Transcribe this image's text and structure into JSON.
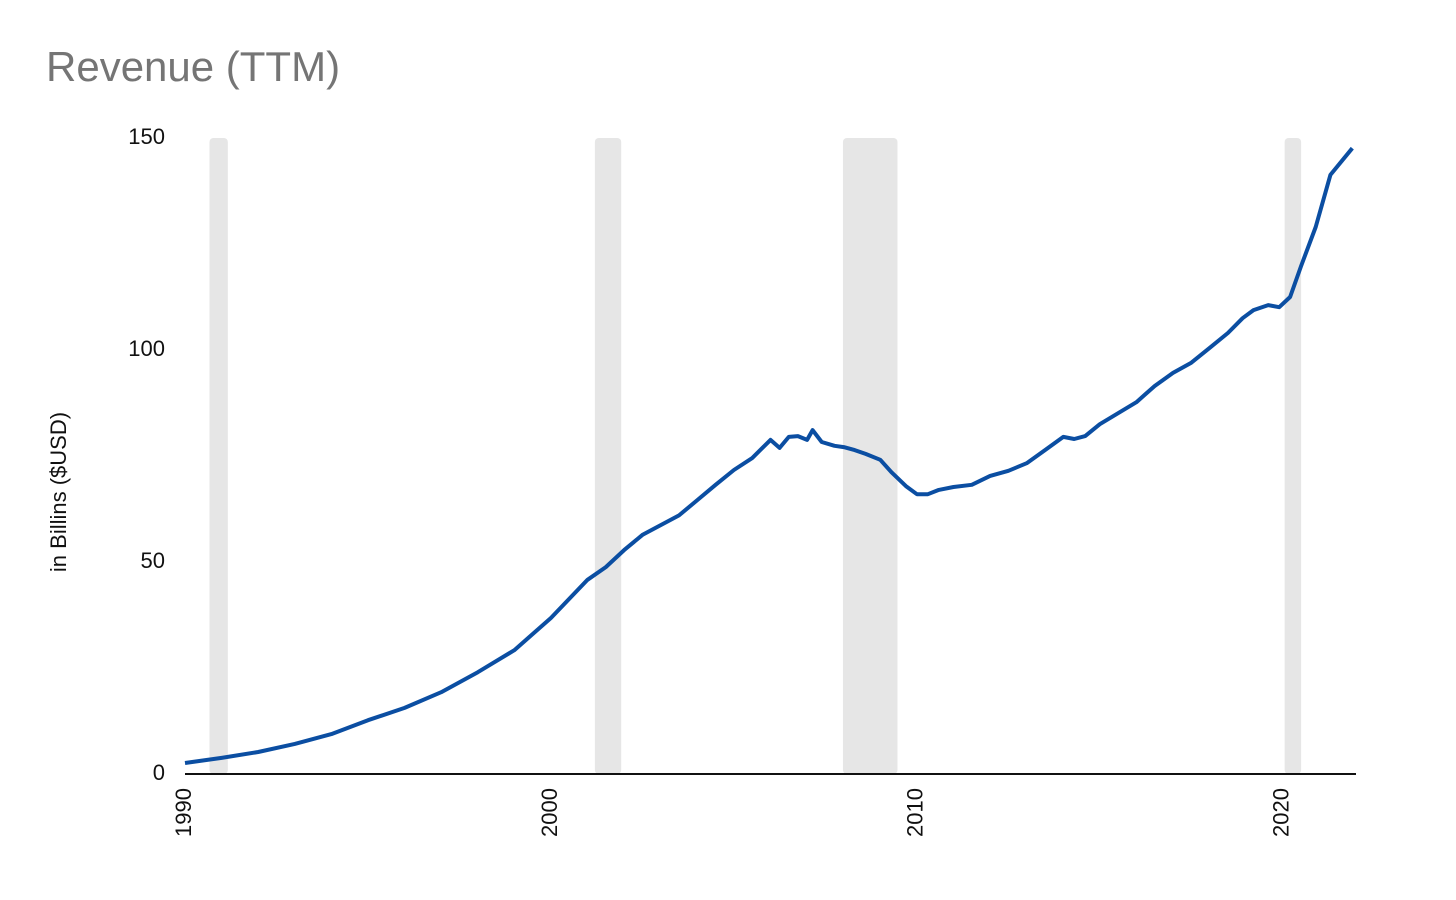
{
  "chart_data": {
    "type": "line",
    "title": "Revenue (TTM)",
    "y_label": "in Billins ($USD)",
    "x": [
      1990,
      1991,
      1992,
      1993,
      1994,
      1995,
      1996,
      1997,
      1998,
      1999,
      2000,
      2001,
      2001.5,
      2002,
      2002.5,
      2003,
      2003.5,
      2004,
      2004.5,
      2005,
      2005.5,
      2006,
      2006.25,
      2006.5,
      2006.75,
      2007,
      2007.15,
      2007.4,
      2007.75,
      2008,
      2008.3,
      2008.6,
      2009,
      2009.3,
      2009.7,
      2010,
      2010.3,
      2010.6,
      2011,
      2011.5,
      2012,
      2012.5,
      2013,
      2013.5,
      2014,
      2014.3,
      2014.6,
      2015,
      2015.5,
      2016,
      2016.5,
      2017,
      2017.5,
      2018,
      2018.5,
      2018.9,
      2019.2,
      2019.6,
      2019.9,
      2020.2,
      2020.5,
      2020.9,
      2021.3,
      2021.9
    ],
    "values": [
      2.6,
      3.8,
      5.2,
      7.1,
      9.4,
      12.7,
      15.6,
      19.3,
      24,
      29.2,
      36.8,
      45.8,
      48.8,
      52.8,
      56.4,
      58.7,
      61,
      64.6,
      68.2,
      71.7,
      74.5,
      78.8,
      76.9,
      79.5,
      79.7,
      78.8,
      81.1,
      78.3,
      77.4,
      77.1,
      76.4,
      75.5,
      74.1,
      71.2,
      67.9,
      66,
      66,
      67,
      67.7,
      68.2,
      70.3,
      71.5,
      73.3,
      76.4,
      79.5,
      79,
      79.7,
      82.5,
      85.1,
      87.7,
      91.5,
      94.6,
      97,
      100.5,
      104,
      107.5,
      109.4,
      110.6,
      110.1,
      112.5,
      119.8,
      129,
      141.3,
      147.6
    ],
    "color": "#0b4ea2",
    "shaded_regions": [
      [
        1990.67,
        1991.17
      ],
      [
        2001.2,
        2001.92
      ],
      [
        2007.98,
        2009.47
      ],
      [
        2020.05,
        2020.5
      ]
    ],
    "shade_color": "#e6e6e6",
    "xlim": [
      1990,
      2022
    ],
    "xticks": [
      1990,
      2000,
      2010,
      2020
    ],
    "ylim": [
      0,
      150
    ],
    "yticks": [
      0,
      50,
      100,
      150
    ],
    "grid": false
  }
}
